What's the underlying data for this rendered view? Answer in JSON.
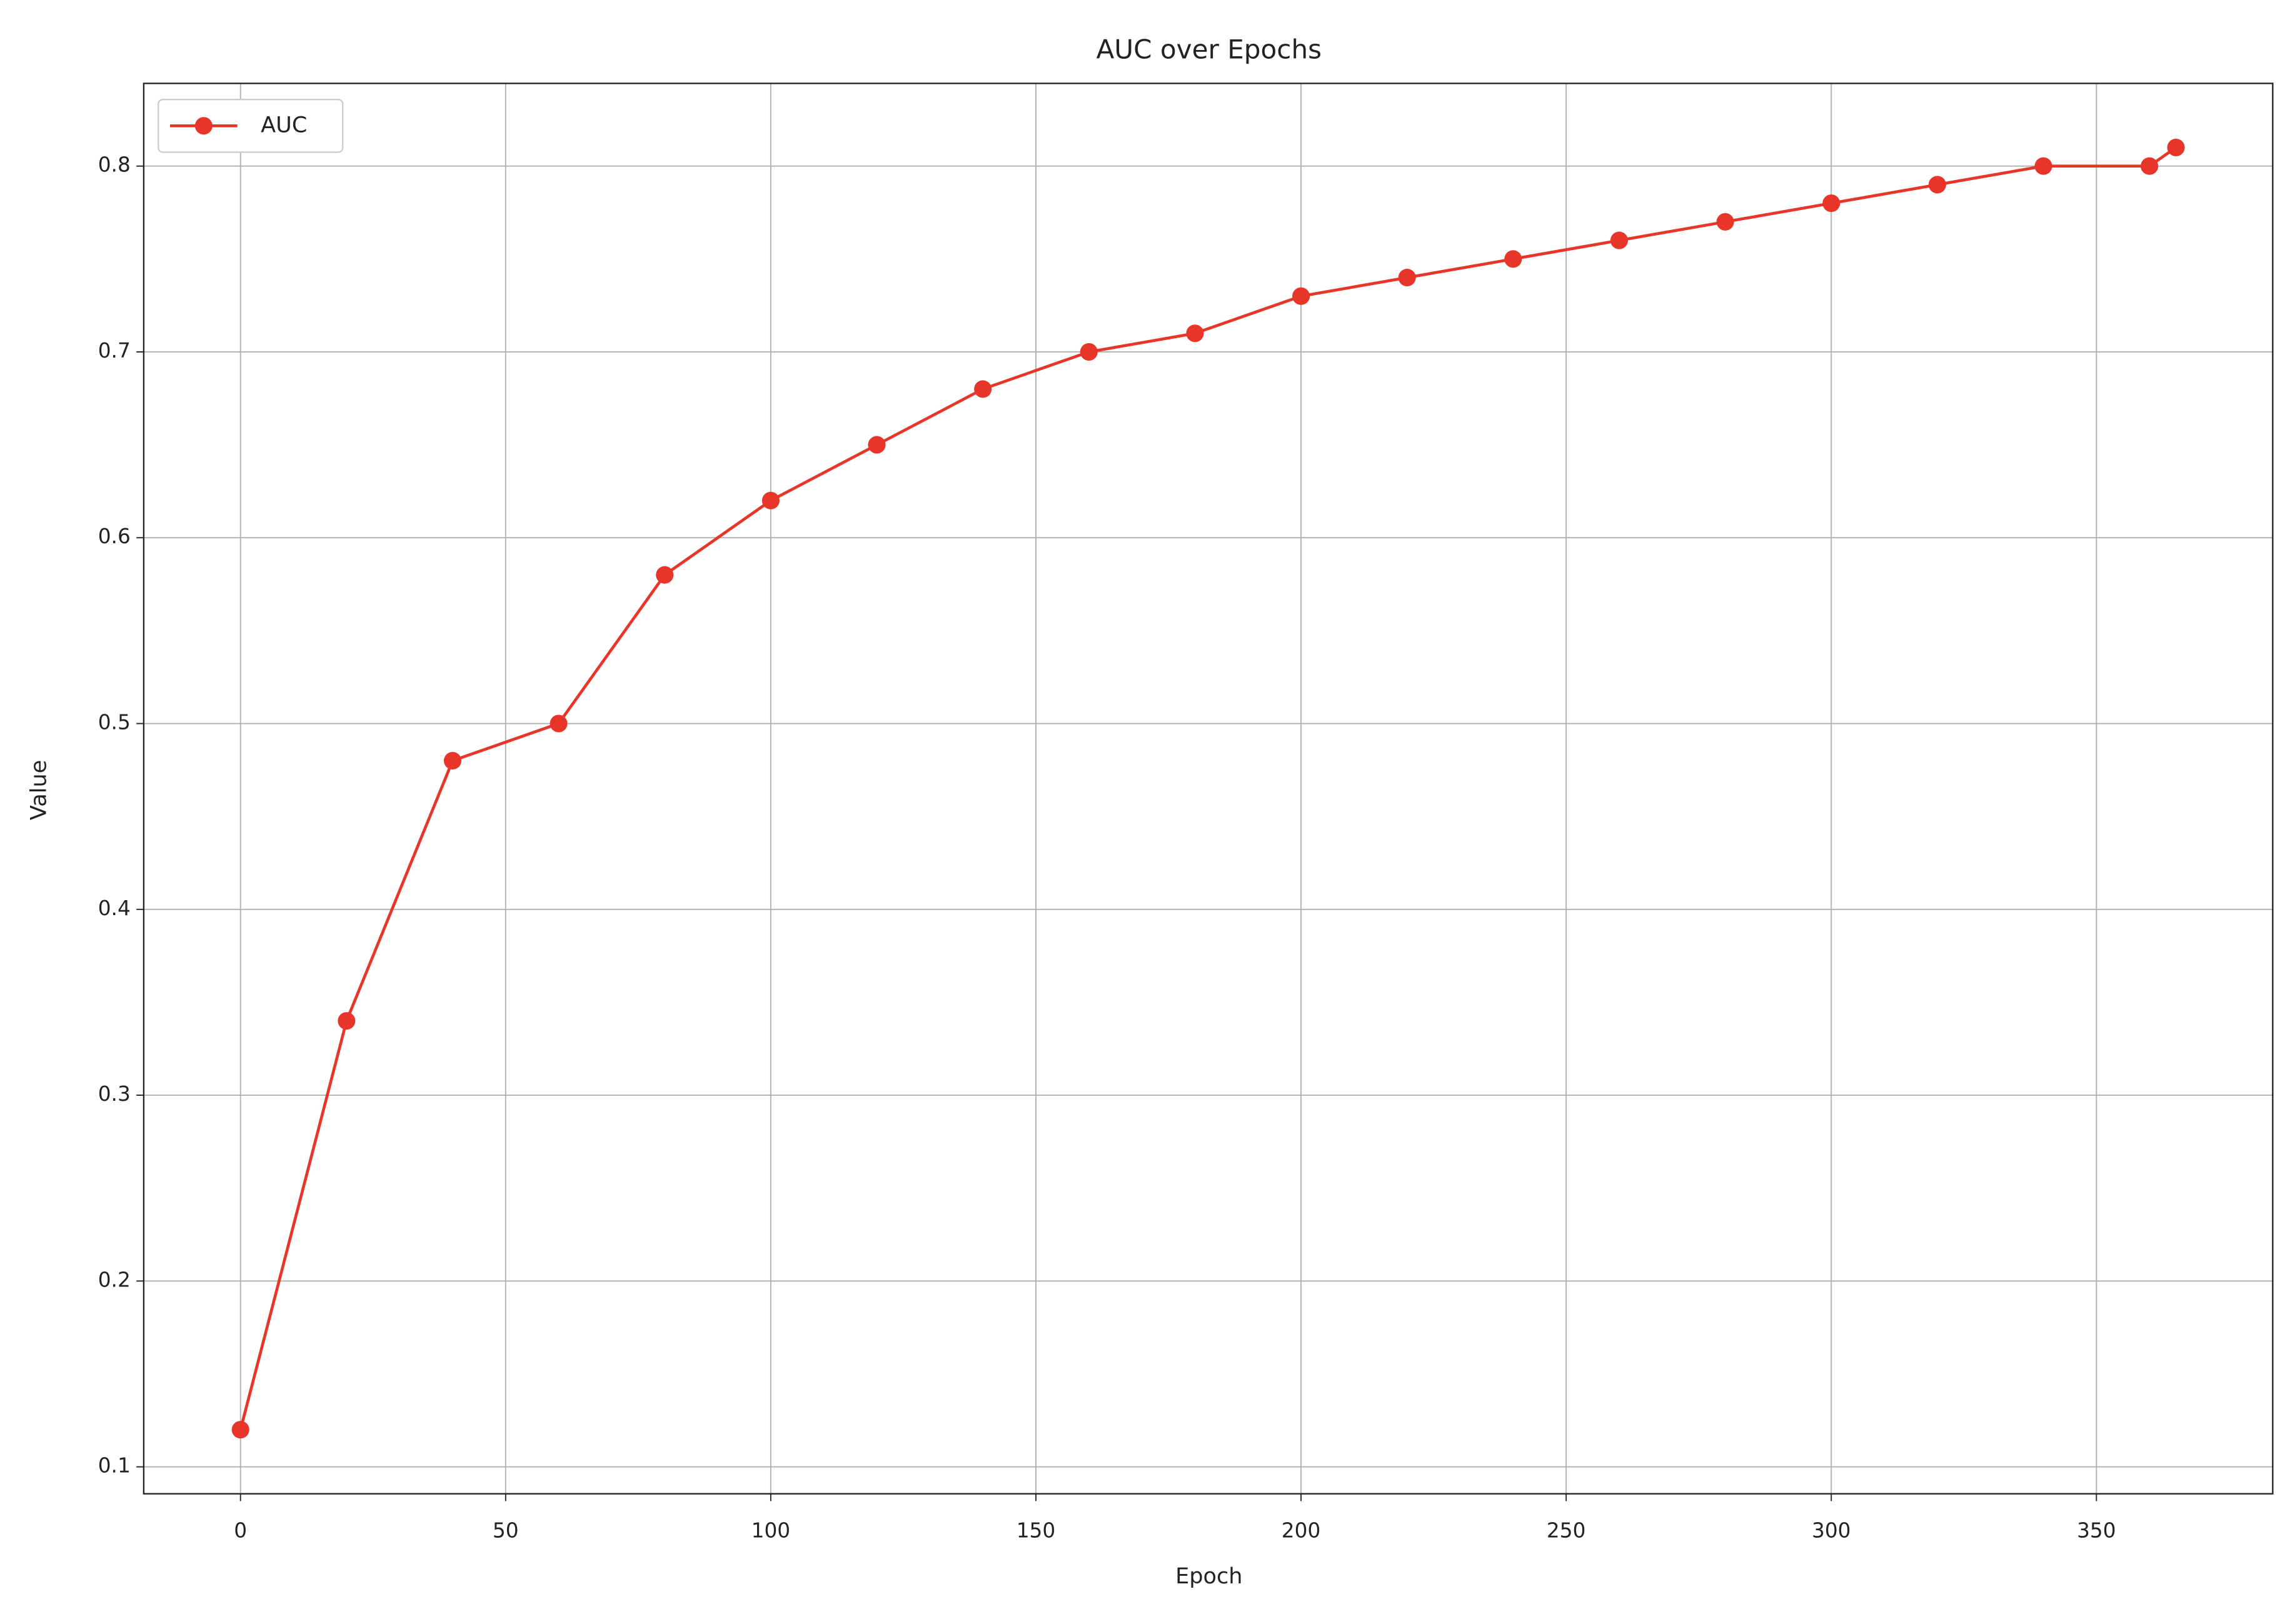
{
  "chart_data": {
    "type": "line",
    "title": "AUC over Epochs",
    "x_label": "Epoch",
    "y_label": "Value",
    "x": [
      0,
      20,
      40,
      60,
      80,
      100,
      120,
      140,
      160,
      180,
      200,
      220,
      240,
      260,
      280,
      300,
      320,
      340,
      360,
      365
    ],
    "series": [
      {
        "name": "AUC",
        "color": "#e8352a",
        "values": [
          0.12,
          0.34,
          0.48,
          0.5,
          0.58,
          0.62,
          0.65,
          0.68,
          0.7,
          0.71,
          0.73,
          0.74,
          0.75,
          0.76,
          0.77,
          0.78,
          0.79,
          0.8,
          0.8,
          0.81
        ]
      }
    ],
    "xlim": [
      -18.25,
      383.25
    ],
    "ylim": [
      0.0855,
      0.8445
    ],
    "xticks": [
      0,
      50,
      100,
      150,
      200,
      250,
      300,
      350
    ],
    "yticks": [
      0.1,
      0.2,
      0.3,
      0.4,
      0.5,
      0.6,
      0.7,
      0.8
    ],
    "grid": true,
    "legend": "upper left"
  }
}
